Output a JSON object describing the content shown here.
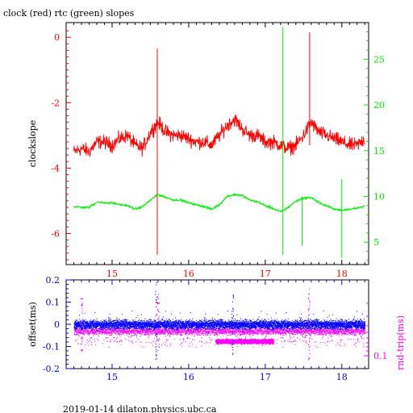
{
  "title": "clock (red) rtc (green) slopes",
  "footer": "2019-01-14 dilaton.physics.ubc.ca",
  "colors": {
    "clock": "#ff0000",
    "rtc": "#00ee00",
    "offset": "#0000ff",
    "rnd_trip": "#ff00ff",
    "frame": "#000000"
  },
  "chart_data": [
    {
      "type": "line",
      "title": "clock (red) rtc (green) slopes",
      "xlim": [
        14.4,
        18.35
      ],
      "x_ticks": [
        15,
        16,
        17,
        18
      ],
      "x_tick_labels": [
        "15",
        "16",
        "17",
        "18"
      ],
      "ylabel": "clockslope",
      "ylim": [
        -6.95,
        0.45
      ],
      "y_ticks": [
        0,
        -2,
        -4,
        -6
      ],
      "y_tick_labels": [
        "0",
        "-2",
        "-4",
        "-6"
      ],
      "y2lim": [
        2.55,
        29.0
      ],
      "y2_ticks": [
        5,
        10,
        15,
        20,
        25
      ],
      "y2_tick_labels": [
        "5",
        "10",
        "15",
        "20",
        "25"
      ],
      "grid": false,
      "series": [
        {
          "name": "clock",
          "axis": "left",
          "color": "#ff0000",
          "x": [
            14.5,
            14.6,
            14.7,
            14.8,
            14.9,
            15.0,
            15.1,
            15.2,
            15.3,
            15.4,
            15.5,
            15.6,
            15.7,
            15.8,
            15.9,
            16.0,
            16.1,
            16.2,
            16.3,
            16.4,
            16.5,
            16.6,
            16.7,
            16.8,
            16.9,
            17.0,
            17.1,
            17.2,
            17.3,
            17.4,
            17.5,
            17.6,
            17.7,
            17.8,
            17.9,
            18.0,
            18.1,
            18.2,
            18.3
          ],
          "values": [
            -3.5,
            -3.4,
            -3.5,
            -3.2,
            -3.2,
            -3.3,
            -3.1,
            -3.0,
            -3.3,
            -3.4,
            -2.9,
            -2.6,
            -2.9,
            -3.0,
            -3.0,
            -3.1,
            -3.2,
            -3.2,
            -3.3,
            -3.0,
            -2.7,
            -2.5,
            -2.8,
            -3.0,
            -3.0,
            -3.2,
            -3.2,
            -3.3,
            -3.4,
            -3.3,
            -3.0,
            -2.6,
            -2.9,
            -3.0,
            -3.1,
            -3.2,
            -3.3,
            -3.3,
            -3.1
          ],
          "spikes": [
            {
              "x": 15.59,
              "low": -6.65,
              "high": -0.35
            },
            {
              "x": 17.58,
              "low": -3.3,
              "high": 0.15
            }
          ]
        },
        {
          "name": "rtc",
          "axis": "right",
          "color": "#00ee00",
          "x": [
            14.5,
            14.6,
            14.7,
            14.8,
            14.9,
            15.0,
            15.1,
            15.2,
            15.3,
            15.4,
            15.5,
            15.6,
            15.7,
            15.8,
            15.9,
            16.0,
            16.1,
            16.2,
            16.3,
            16.4,
            16.5,
            16.6,
            16.7,
            16.8,
            16.9,
            17.0,
            17.1,
            17.2,
            17.3,
            17.4,
            17.5,
            17.6,
            17.7,
            17.8,
            17.9,
            18.0,
            18.1,
            18.2,
            18.3
          ],
          "values": [
            8.9,
            8.8,
            8.8,
            9.4,
            9.3,
            9.3,
            9.1,
            9.0,
            8.6,
            8.9,
            9.6,
            10.2,
            9.9,
            9.6,
            9.6,
            9.3,
            9.1,
            8.9,
            8.6,
            9.1,
            10.0,
            10.2,
            10.1,
            9.6,
            9.4,
            9.0,
            8.7,
            8.3,
            8.8,
            9.5,
            9.8,
            9.9,
            9.3,
            9.0,
            8.6,
            8.5,
            8.6,
            8.7,
            9.0
          ],
          "spikes": [
            {
              "x": 17.23,
              "low": 3.6,
              "high": 28.5
            },
            {
              "x": 17.48,
              "low": 4.6,
              "high": 10.0
            },
            {
              "x": 18.0,
              "low": 3.3,
              "high": 11.9
            }
          ]
        }
      ]
    },
    {
      "type": "scatter",
      "xlim": [
        14.4,
        18.35
      ],
      "x_ticks": [
        15,
        16,
        17,
        18
      ],
      "x_tick_labels": [
        "15",
        "16",
        "17",
        "18"
      ],
      "ylabel": "offset(ms)",
      "ylim": [
        -0.2,
        0.2
      ],
      "y_ticks": [
        0.2,
        0.1,
        0,
        -0.1,
        -0.2
      ],
      "y_tick_labels": [
        "0.2",
        "0.1",
        "0",
        "-0.1",
        "-0.2"
      ],
      "y2label": "rnd-trip(ms)",
      "y2_scale": "log",
      "y2_ticks": [
        0.1
      ],
      "y2_tick_labels": [
        "0.1"
      ],
      "series": [
        {
          "name": "offset",
          "axis": "left",
          "color": "#0000ff",
          "x_range": [
            14.5,
            18.3
          ],
          "center": 0.0,
          "spread": 0.03,
          "outliers": [
            {
              "x": 14.6,
              "low": -0.12,
              "high": 0.12
            },
            {
              "x": 15.57,
              "low": -0.16,
              "high": 0.19
            },
            {
              "x": 15.6,
              "low": -0.12,
              "high": 0.15
            },
            {
              "x": 16.57,
              "low": -0.14,
              "high": 0.14
            },
            {
              "x": 17.57,
              "low": -0.16,
              "high": 0.18
            }
          ]
        },
        {
          "name": "rnd-trip",
          "axis": "right",
          "color": "#ff00ff",
          "x_range": [
            14.5,
            18.3
          ],
          "center": -0.03,
          "spread": 0.025,
          "cluster": {
            "x_from": 16.35,
            "x_to": 17.1,
            "center": -0.075,
            "spread": 0.012
          }
        }
      ]
    }
  ]
}
